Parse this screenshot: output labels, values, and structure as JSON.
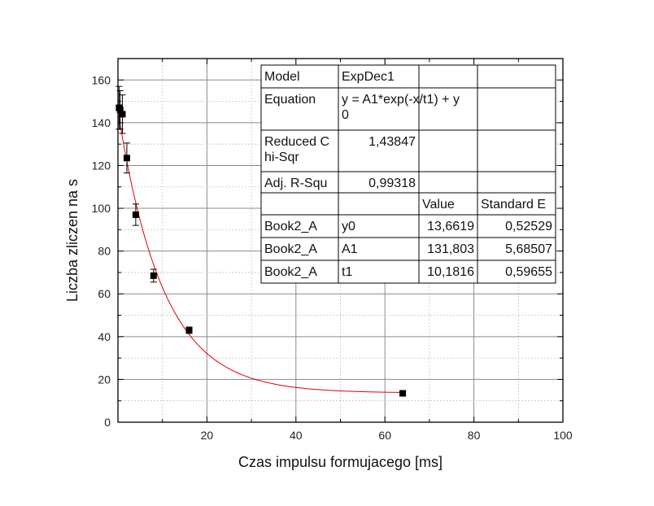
{
  "chart_data": {
    "type": "scatter",
    "title": "",
    "xlabel": "Czas impulsu formujacego [ms]",
    "ylabel": "Liczba zliczen na s",
    "xlim": [
      0,
      100
    ],
    "ylim": [
      0,
      170
    ],
    "x_ticks": [
      20,
      40,
      60,
      80,
      100
    ],
    "x_tick_labels": [
      "20",
      "40",
      "60",
      "80",
      "100"
    ],
    "y_ticks": [
      0,
      20,
      40,
      60,
      80,
      100,
      120,
      140,
      160
    ],
    "y_tick_labels": [
      "0",
      "20",
      "40",
      "60",
      "80",
      "100",
      "120",
      "140",
      "160"
    ],
    "grid": true,
    "points": [
      {
        "x": 0.25,
        "y": 147,
        "err": 10
      },
      {
        "x": 0.5,
        "y": 146,
        "err": 9
      },
      {
        "x": 1,
        "y": 144,
        "err": 9
      },
      {
        "x": 2,
        "y": 123.5,
        "err": 7
      },
      {
        "x": 4,
        "y": 97,
        "err": 5
      },
      {
        "x": 8,
        "y": 68.5,
        "err": 3
      },
      {
        "x": 16,
        "y": 43,
        "err": 1.5
      },
      {
        "x": 64,
        "y": 13.5,
        "err": 0.8
      }
    ],
    "fit": {
      "model": "ExpDec1",
      "y0": 13.6619,
      "A1": 131.803,
      "t1": 10.1816,
      "color": "#e00000"
    },
    "marker_color": "#000000"
  },
  "fit_table": {
    "rows": [
      [
        "Model",
        "ExpDec1",
        "",
        ""
      ],
      [
        "Equation",
        "y = A1*exp(-x/t1) + y\n0",
        "",
        ""
      ],
      [
        "Reduced C\nhi-Sqr",
        "1,43847",
        "",
        ""
      ],
      [
        "Adj. R-Squ",
        "0,99318",
        "",
        ""
      ],
      [
        "",
        "",
        "Value",
        "Standard E"
      ],
      [
        "Book2_A",
        "y0",
        "13,6619",
        "0,52529"
      ],
      [
        "Book2_A",
        "A1",
        "131,803",
        "5,68507"
      ],
      [
        "Book2_A",
        "t1",
        "10,1816",
        "0,59655"
      ]
    ],
    "right_aligned": [
      [
        2,
        1
      ],
      [
        3,
        1
      ],
      [
        5,
        2
      ],
      [
        5,
        3
      ],
      [
        6,
        2
      ],
      [
        6,
        3
      ],
      [
        7,
        2
      ],
      [
        7,
        3
      ]
    ]
  }
}
